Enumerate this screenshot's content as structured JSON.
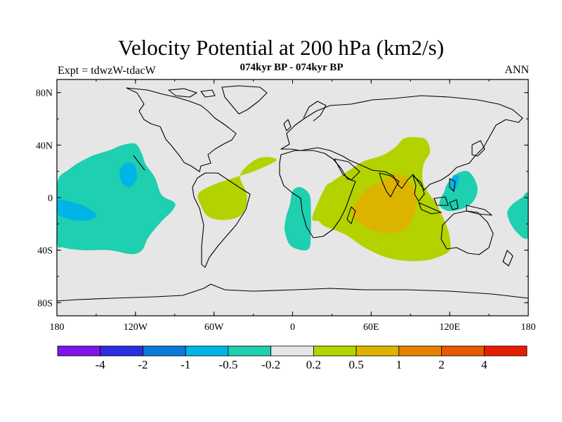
{
  "title": "Velocity Potential at 200 hPa (km2/s)",
  "left_label": "Expt = tdwzW-tdacW",
  "center_label": "074kyr BP - 074kyr BP",
  "right_label": "ANN",
  "map": {
    "projection": "cylindrical-equidistant",
    "lon_range": [
      -180,
      180
    ],
    "lat_range": [
      -90,
      90
    ],
    "lon_ticks": [
      {
        "value": -180,
        "label": "180"
      },
      {
        "value": -120,
        "label": "120W"
      },
      {
        "value": -60,
        "label": "60W"
      },
      {
        "value": 0,
        "label": "0"
      },
      {
        "value": 60,
        "label": "60E"
      },
      {
        "value": 120,
        "label": "120E"
      },
      {
        "value": 180,
        "label": "180"
      }
    ],
    "lat_ticks": [
      {
        "value": 80,
        "label": "80N"
      },
      {
        "value": 40,
        "label": "40N"
      },
      {
        "value": 0,
        "label": "0"
      },
      {
        "value": -40,
        "label": "40S"
      },
      {
        "value": -80,
        "label": "80S"
      }
    ],
    "background_color": "#e6e6e6",
    "coast_color": "#000000",
    "anomaly_regions": [
      {
        "name": "east-pacific-negative",
        "level": "-0.5 to -0.2",
        "color": "#1ecfb0",
        "poly": [
          [
            -180,
            -33
          ],
          [
            -175,
            -38
          ],
          [
            -160,
            -40
          ],
          [
            -140,
            -40
          ],
          [
            -123,
            -43
          ],
          [
            -115,
            -40
          ],
          [
            -110,
            -30
          ],
          [
            -100,
            -18
          ],
          [
            -92,
            -10
          ],
          [
            -90,
            -4
          ],
          [
            -100,
            2
          ],
          [
            -105,
            15
          ],
          [
            -112,
            25
          ],
          [
            -115,
            33
          ],
          [
            -120,
            41
          ],
          [
            -130,
            40
          ],
          [
            -140,
            36
          ],
          [
            -155,
            31
          ],
          [
            -170,
            22
          ],
          [
            -180,
            10
          ]
        ]
      },
      {
        "name": "east-pacific-core",
        "level": "-1 to -0.5",
        "color": "#00b4e6",
        "poly": [
          [
            -132,
            20
          ],
          [
            -128,
            26
          ],
          [
            -121,
            25
          ],
          [
            -119,
            15
          ],
          [
            -124,
            8
          ],
          [
            -130,
            11
          ]
        ]
      },
      {
        "name": "south-pacific-core",
        "level": "-1 to -0.5",
        "color": "#00b4e6",
        "poly": [
          [
            -180,
            -2
          ],
          [
            -170,
            -3
          ],
          [
            -158,
            -7
          ],
          [
            -150,
            -13
          ],
          [
            -155,
            -17
          ],
          [
            -168,
            -17
          ],
          [
            -180,
            -12
          ]
        ]
      },
      {
        "name": "south-america-positive",
        "level": "0.2 to 0.5",
        "color": "#b4d200",
        "poly": [
          [
            -72,
            3
          ],
          [
            -60,
            10
          ],
          [
            -45,
            15
          ],
          [
            -30,
            20
          ],
          [
            -18,
            25
          ],
          [
            -12,
            29
          ],
          [
            -20,
            31
          ],
          [
            -30,
            28
          ],
          [
            -40,
            17
          ],
          [
            -35,
            3
          ],
          [
            -36,
            -8
          ],
          [
            -42,
            -15
          ],
          [
            -55,
            -17
          ],
          [
            -65,
            -14
          ],
          [
            -70,
            -6
          ]
        ]
      },
      {
        "name": "south-atlantic-negative",
        "level": "-0.5 to -0.2",
        "color": "#1ecfb0",
        "poly": [
          [
            -5,
            -15
          ],
          [
            -2,
            -5
          ],
          [
            0,
            5
          ],
          [
            6,
            8
          ],
          [
            13,
            2
          ],
          [
            14,
            -12
          ],
          [
            14,
            -25
          ],
          [
            13,
            -38
          ],
          [
            7,
            -40
          ],
          [
            -2,
            -36
          ],
          [
            -6,
            -25
          ]
        ]
      },
      {
        "name": "indian-ocean-positive",
        "level": "0.2 to 0.5",
        "color": "#b4d200",
        "poly": [
          [
            15,
            -15
          ],
          [
            25,
            8
          ],
          [
            30,
            12
          ],
          [
            45,
            22
          ],
          [
            55,
            28
          ],
          [
            68,
            32
          ],
          [
            78,
            38
          ],
          [
            85,
            45
          ],
          [
            95,
            46
          ],
          [
            102,
            44
          ],
          [
            105,
            35
          ],
          [
            100,
            25
          ],
          [
            100,
            10
          ],
          [
            110,
            -5
          ],
          [
            117,
            -20
          ],
          [
            120,
            -30
          ],
          [
            120,
            -40
          ],
          [
            112,
            -45
          ],
          [
            100,
            -48
          ],
          [
            85,
            -48
          ],
          [
            70,
            -45
          ],
          [
            55,
            -38
          ],
          [
            40,
            -28
          ],
          [
            25,
            -22
          ],
          [
            20,
            -18
          ]
        ]
      },
      {
        "name": "indian-ocean-core",
        "level": "0.5 to 1",
        "color": "#dcb400",
        "poly": [
          [
            45,
            -12
          ],
          [
            48,
            -5
          ],
          [
            55,
            5
          ],
          [
            67,
            12
          ],
          [
            77,
            17
          ],
          [
            85,
            17
          ],
          [
            92,
            8
          ],
          [
            95,
            -2
          ],
          [
            92,
            -15
          ],
          [
            86,
            -24
          ],
          [
            75,
            -27
          ],
          [
            62,
            -25
          ],
          [
            52,
            -20
          ]
        ]
      },
      {
        "name": "maritime-continent-negative",
        "level": "-0.5 to -0.2",
        "color": "#1ecfb0",
        "poly": [
          [
            112,
            -5
          ],
          [
            116,
            5
          ],
          [
            118,
            10
          ],
          [
            125,
            18
          ],
          [
            134,
            20
          ],
          [
            140,
            12
          ],
          [
            141,
            4
          ],
          [
            137,
            -4
          ],
          [
            128,
            -9
          ],
          [
            118,
            -10
          ]
        ]
      },
      {
        "name": "maritime-core",
        "level": "-1 to -0.5",
        "color": "#00b4e6",
        "poly": [
          [
            123,
            5
          ],
          [
            126,
            10
          ],
          [
            127,
            16
          ],
          [
            123,
            17
          ],
          [
            121,
            12
          ],
          [
            121,
            7
          ]
        ]
      },
      {
        "name": "southwest-pacific-negative",
        "level": "-0.5 to -0.2",
        "color": "#1ecfb0",
        "poly": [
          [
            180,
            2
          ],
          [
            175,
            0
          ],
          [
            167,
            -6
          ],
          [
            164,
            -13
          ],
          [
            170,
            -25
          ],
          [
            180,
            -30
          ]
        ]
      }
    ]
  },
  "colorbar": {
    "colors": [
      "#7d16e6",
      "#2c2ce2",
      "#0a7ad6",
      "#00b4e6",
      "#1ecfb0",
      "#e6e6e6",
      "#b4d200",
      "#dcb400",
      "#e68200",
      "#e65a00",
      "#e61e00"
    ],
    "labels": [
      "-4",
      "-2",
      "-1",
      "-0.5",
      "-0.2",
      "0.2",
      "0.5",
      "1",
      "2",
      "4"
    ]
  }
}
